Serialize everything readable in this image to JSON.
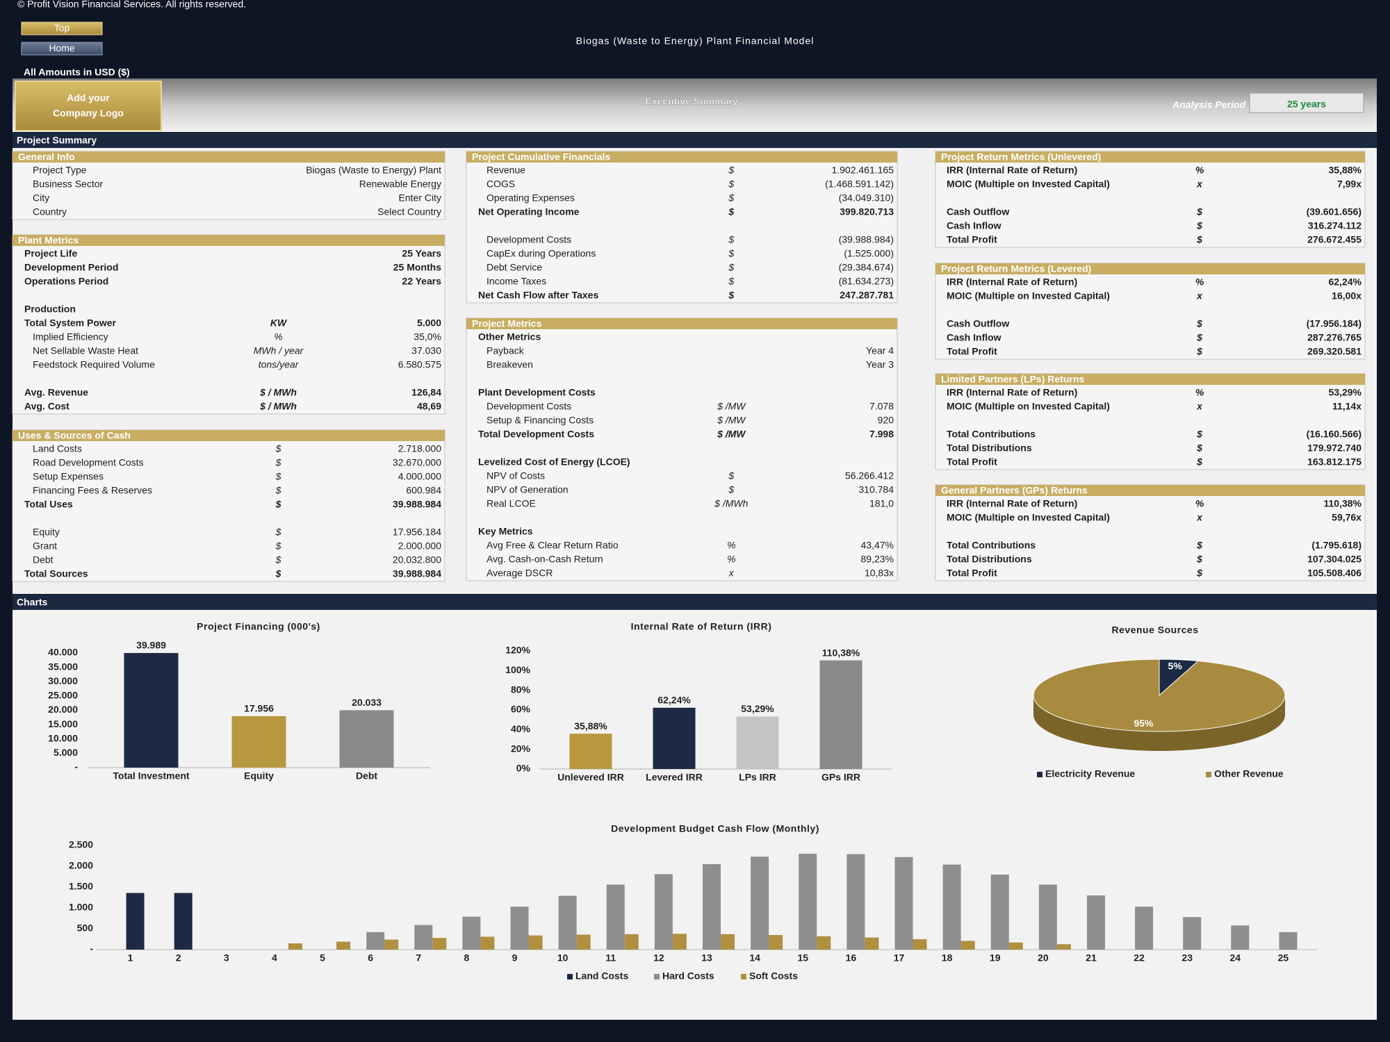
{
  "header": {
    "copyright": "© Profit Vision Financial Services. All rights reserved.",
    "buttons": [
      "Top",
      "Home"
    ],
    "title": "Biogas (Waste to Energy) Plant Financial Model",
    "amounts_note": "All Amounts in  USD ($)",
    "logo": [
      "Add your",
      "Company Logo"
    ],
    "page_title": "Executive Summary",
    "analysis_period": {
      "label": "Analysis Period",
      "value": "25 years"
    }
  },
  "summary": {
    "title": "Project Summary",
    "columns": [
      {
        "panels": [
          {
            "title": "General Info",
            "rows": [
              {
                "label": "Project Type",
                "value": "Biogas (Waste to Energy) Plant"
              },
              {
                "label": "Business Sector",
                "value": "Renewable Energy"
              },
              {
                "label": "City",
                "value": "Enter City"
              },
              {
                "label": "Country",
                "value": "Select Country"
              }
            ]
          },
          {
            "title": "Plant Metrics",
            "rows": [
              {
                "label": "Project Life",
                "value": "25 Years",
                "bold": true
              },
              {
                "label": "Development Period",
                "value": "25 Months",
                "bold": true
              },
              {
                "label": "Operations Period",
                "value": "22 Years",
                "bold": true
              },
              null,
              {
                "label": "Production",
                "bold": true
              },
              {
                "label": "Total System Power",
                "unit": "KW",
                "value": "5.000",
                "bold": true
              },
              {
                "label": "Implied Efficiency",
                "unit": "%",
                "value": "35,0%"
              },
              {
                "label": "Net Sellable Waste Heat",
                "unit": "MWh / year",
                "value": "37.030"
              },
              {
                "label": "Feedstock Required Volume",
                "unit": "tons/year",
                "value": "6.580.575"
              },
              null,
              {
                "label": "Avg. Revenue",
                "unit": "$ / MWh",
                "value": "126,84",
                "bold": true
              },
              {
                "label": "Avg. Cost",
                "unit": "$ / MWh",
                "value": "48,69",
                "bold": true
              }
            ]
          },
          {
            "title": "Uses & Sources of Cash",
            "rows": [
              {
                "label": "Land Costs",
                "unit": "$",
                "value": "2.718.000"
              },
              {
                "label": "Road Development Costs",
                "unit": "$",
                "value": "32.670.000"
              },
              {
                "label": "Setup Expenses",
                "unit": "$",
                "value": "4.000.000"
              },
              {
                "label": "Financing Fees & Reserves",
                "unit": "$",
                "value": "600.984"
              },
              {
                "label": "Total Uses",
                "unit": "$",
                "value": "39.988.984",
                "bold": true
              },
              null,
              {
                "label": "Equity",
                "unit": "$",
                "value": "17.956.184"
              },
              {
                "label": "Grant",
                "unit": "$",
                "value": "2.000.000"
              },
              {
                "label": "Debt",
                "unit": "$",
                "value": "20.032.800"
              },
              {
                "label": "Total Sources",
                "unit": "$",
                "value": "39.988.984",
                "bold": true
              }
            ]
          }
        ]
      },
      {
        "panels": [
          {
            "title": "Project Cumulative Financials",
            "rows": [
              {
                "label": "Revenue",
                "unit": "$",
                "value": "1.902.461.165"
              },
              {
                "label": "COGS",
                "unit": "$",
                "value": "(1.468.591.142)"
              },
              {
                "label": "Operating Expenses",
                "unit": "$",
                "value": "(34.049.310)"
              },
              {
                "label": "Net Operating Income",
                "unit": "$",
                "value": "399.820.713",
                "bold": true
              },
              null,
              {
                "label": "Development Costs",
                "unit": "$",
                "value": "(39.988.984)"
              },
              {
                "label": "CapEx during Operations",
                "unit": "$",
                "value": "(1.525.000)"
              },
              {
                "label": "Debt Service",
                "unit": "$",
                "value": "(29.384.674)"
              },
              {
                "label": "Income Taxes",
                "unit": "$",
                "value": "(81.634.273)"
              },
              {
                "label": "Net Cash Flow after Taxes",
                "unit": "$",
                "value": "247.287.781",
                "bold": true
              }
            ]
          },
          {
            "title": "Project Metrics",
            "rows": [
              {
                "label": "Other Metrics",
                "bold": true
              },
              {
                "label": "Payback",
                "value": "Year 4"
              },
              {
                "label": "Breakeven",
                "value": "Year 3"
              },
              null,
              {
                "label": "Plant Development Costs",
                "bold": true
              },
              {
                "label": "Development Costs",
                "unit": "$ /MW",
                "value": "7.078"
              },
              {
                "label": "Setup & Financing Costs",
                "unit": "$ /MW",
                "value": "920"
              },
              {
                "label": "Total Development Costs",
                "unit": "$ /MW",
                "value": "7.998",
                "bold": true
              },
              null,
              {
                "label": "Levelized Cost of Energy (LCOE)",
                "bold": true
              },
              {
                "label": "NPV of Costs",
                "unit": "$",
                "value": "56.266.412"
              },
              {
                "label": "NPV of Generation",
                "unit": "$",
                "value": "310.784"
              },
              {
                "label": "Real LCOE",
                "unit": "$ /MWh",
                "value": "181,0"
              },
              null,
              {
                "label": "Key Metrics",
                "bold": true
              },
              {
                "label": "Avg Free & Clear Return Ratio",
                "unit": "%",
                "value": "43,47%"
              },
              {
                "label": "Avg. Cash-on-Cash Return",
                "unit": "%",
                "value": "89,23%"
              },
              {
                "label": "Average DSCR",
                "unit": "x",
                "value": "10,83x"
              }
            ]
          }
        ]
      },
      {
        "panels": [
          {
            "title": "Project Return Metrics (Unlevered)",
            "rows": [
              {
                "label": "IRR (Internal Rate of Return)",
                "unit": "%",
                "value": "35,88%",
                "bold": true
              },
              {
                "label": "MOIC (Multiple on Invested Capital)",
                "unit": "x",
                "value": "7,99x",
                "bold": true
              },
              null,
              {
                "label": "Cash Outflow",
                "unit": "$",
                "value": "(39.601.656)",
                "bold": true
              },
              {
                "label": "Cash Inflow",
                "unit": "$",
                "value": "316.274.112",
                "bold": true
              },
              {
                "label": "Total Profit",
                "unit": "$",
                "value": "276.672.455",
                "bold": true
              }
            ]
          },
          {
            "title": "Project Return Metrics (Levered)",
            "rows": [
              {
                "label": "IRR (Internal Rate of Return)",
                "unit": "%",
                "value": "62,24%",
                "bold": true
              },
              {
                "label": "MOIC (Multiple on Invested Capital)",
                "unit": "x",
                "value": "16,00x",
                "bold": true
              },
              null,
              {
                "label": "Cash Outflow",
                "unit": "$",
                "value": "(17.956.184)",
                "bold": true
              },
              {
                "label": "Cash Inflow",
                "unit": "$",
                "value": "287.276.765",
                "bold": true
              },
              {
                "label": "Total Profit",
                "unit": "$",
                "value": "269.320.581",
                "bold": true
              }
            ]
          },
          {
            "title": "Limited Partners (LPs) Returns",
            "rows": [
              {
                "label": "IRR (Internal Rate of Return)",
                "unit": "%",
                "value": "53,29%",
                "bold": true
              },
              {
                "label": "MOIC (Multiple on Invested Capital)",
                "unit": "x",
                "value": "11,14x",
                "bold": true
              },
              null,
              {
                "label": "Total Contributions",
                "unit": "$",
                "value": "(16.160.566)",
                "bold": true
              },
              {
                "label": "Total Distributions",
                "unit": "$",
                "value": "179.972.740",
                "bold": true
              },
              {
                "label": "Total Profit",
                "unit": "$",
                "value": "163.812.175",
                "bold": true
              }
            ]
          },
          {
            "title": "General Partners (GPs) Returns",
            "rows": [
              {
                "label": "IRR (Internal Rate of Return)",
                "unit": "%",
                "value": "110,38%",
                "bold": true
              },
              {
                "label": "MOIC (Multiple on Invested Capital)",
                "unit": "x",
                "value": "59,76x",
                "bold": true
              },
              null,
              {
                "label": "Total Contributions",
                "unit": "$",
                "value": "(1.795.618)",
                "bold": true
              },
              {
                "label": "Total Distributions",
                "unit": "$",
                "value": "107.304.025",
                "bold": true
              },
              {
                "label": "Total Profit",
                "unit": "$",
                "value": "105.508.406",
                "bold": true
              }
            ]
          }
        ]
      }
    ]
  },
  "charts_title": "Charts",
  "chart_data": [
    {
      "type": "bar",
      "title": "Project Financing (000's)",
      "categories": [
        "Total Investment",
        "Equity",
        "Debt"
      ],
      "values": [
        39989,
        17956,
        20033
      ],
      "value_labels": [
        "39.989",
        "17.956",
        "20.033"
      ],
      "colors": [
        "#1c2a45",
        "#b8983f",
        "#8a8a8a"
      ],
      "ylim": [
        0,
        40000
      ],
      "yticks": [
        {
          "value": 0,
          "label": "-"
        },
        {
          "value": 5000,
          "label": "5.000"
        },
        {
          "value": 10000,
          "label": "10.000"
        },
        {
          "value": 15000,
          "label": "15.000"
        },
        {
          "value": 20000,
          "label": "20.000"
        },
        {
          "value": 25000,
          "label": "25.000"
        },
        {
          "value": 30000,
          "label": "30.000"
        },
        {
          "value": 35000,
          "label": "35.000"
        },
        {
          "value": 40000,
          "label": "40.000"
        }
      ],
      "grid": false
    },
    {
      "type": "bar",
      "title": "Internal Rate of Return (IRR)",
      "categories": [
        "Unlevered IRR",
        "Levered IRR",
        "LPs IRR",
        "GPs IRR"
      ],
      "values": [
        35.88,
        62.24,
        53.29,
        110.38
      ],
      "value_labels": [
        "35,88%",
        "62,24%",
        "53,29%",
        "110,38%"
      ],
      "colors": [
        "#b8983f",
        "#1c2a45",
        "#c4c4c4",
        "#8a8a8a"
      ],
      "ylim": [
        0,
        120
      ],
      "yticks": [
        {
          "value": 0,
          "label": "0%"
        },
        {
          "value": 20,
          "label": "20%"
        },
        {
          "value": 40,
          "label": "40%"
        },
        {
          "value": 60,
          "label": "60%"
        },
        {
          "value": 80,
          "label": "80%"
        },
        {
          "value": 100,
          "label": "100%"
        },
        {
          "value": 120,
          "label": "120%"
        }
      ],
      "grid": false
    },
    {
      "type": "pie",
      "title": "Revenue Sources",
      "categories": [
        "Electricity Revenue",
        "Other Revenue"
      ],
      "values": [
        5,
        95
      ],
      "value_labels": [
        "5%",
        "95%"
      ],
      "colors": [
        "#1c2a45",
        "#a88b3e"
      ],
      "legend": "bottom"
    },
    {
      "type": "bar",
      "title": "Development Budget Cash Flow (Monthly)",
      "categories": [
        "1",
        "2",
        "3",
        "4",
        "5",
        "6",
        "7",
        "8",
        "9",
        "10",
        "11",
        "12",
        "13",
        "14",
        "15",
        "16",
        "17",
        "18",
        "19",
        "20",
        "21",
        "22",
        "23",
        "24",
        "25"
      ],
      "series": [
        {
          "name": "Land Costs",
          "color": "#1c2a45",
          "values": [
            1359,
            1359,
            0,
            0,
            0,
            0,
            0,
            0,
            0,
            0,
            0,
            0,
            0,
            0,
            0,
            0,
            0,
            0,
            0,
            0,
            0,
            0,
            0,
            0,
            0
          ]
        },
        {
          "name": "Hard Costs",
          "color": "#8e8e8e",
          "values": [
            0,
            0,
            0,
            0,
            0,
            420,
            590,
            790,
            1030,
            1290,
            1560,
            1810,
            2050,
            2230,
            2300,
            2290,
            2220,
            2040,
            1800,
            1560,
            1300,
            1030,
            780,
            580,
            420
          ]
        },
        {
          "name": "Soft Costs",
          "color": "#b0903f",
          "values": [
            0,
            0,
            0,
            150,
            190,
            240,
            280,
            310,
            340,
            360,
            370,
            380,
            370,
            350,
            320,
            290,
            250,
            210,
            170,
            130,
            0,
            0,
            0,
            0,
            0
          ]
        }
      ],
      "ylim": [
        0,
        2500
      ],
      "yticks": [
        {
          "value": 0,
          "label": "-"
        },
        500,
        {
          "value": 1000,
          "label": "1.000"
        },
        {
          "value": 1500,
          "label": "1.500"
        },
        {
          "value": 2000,
          "label": "2.000"
        },
        {
          "value": 2500,
          "label": "2.500"
        }
      ],
      "grid": false,
      "legend": "bottom"
    }
  ]
}
